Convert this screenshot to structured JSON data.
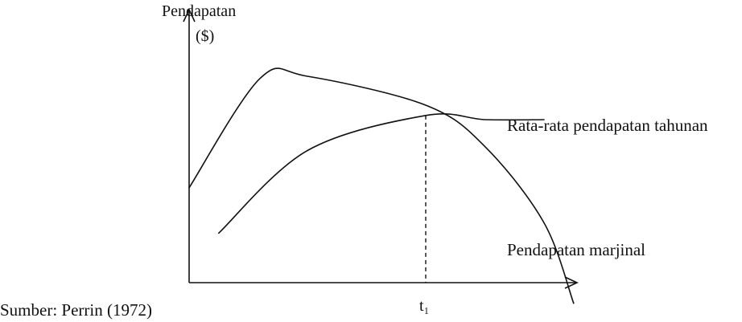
{
  "chart_data": {
    "type": "line",
    "ylabel_line1": "Pendapatan",
    "ylabel_line2": "($)",
    "xlabel": "",
    "series": [
      {
        "name": "Pendapatan marjinal",
        "color": "#111111",
        "points": [
          [
            0.0,
            0.46
          ],
          [
            0.6,
            0.99
          ],
          [
            1.0,
            1.0
          ],
          [
            2.0,
            0.86
          ],
          [
            2.5,
            0.66
          ],
          [
            3.0,
            0.29
          ],
          [
            3.25,
            -0.1
          ]
        ]
      },
      {
        "name": "Rata-rata pendapatan tahunan",
        "color": "#111111",
        "points": [
          [
            0.25,
            0.24
          ],
          [
            1.0,
            0.64
          ],
          [
            2.0,
            0.81
          ],
          [
            2.5,
            0.79
          ],
          [
            3.0,
            0.79
          ]
        ]
      }
    ],
    "markers": [
      {
        "label": "t₁",
        "x": 2.0
      }
    ]
  },
  "source": "Sumber: Perrin (1972)",
  "x_axis_label": "",
  "colors": {
    "ink": "#111111",
    "background": "#ffffff"
  }
}
